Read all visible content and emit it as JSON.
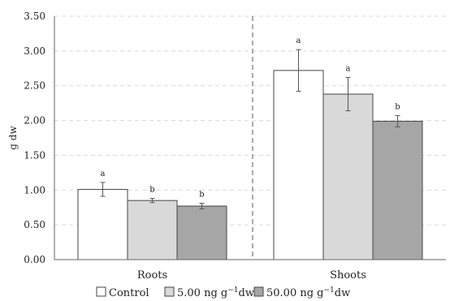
{
  "chart_data": {
    "type": "bar",
    "ylabel": "g dw",
    "ylim": [
      0,
      3.5
    ],
    "yticks": [
      "0.00",
      "0.50",
      "1.00",
      "1.50",
      "2.00",
      "2.50",
      "3.00",
      "3.50"
    ],
    "categories": [
      "Roots",
      "Shoots"
    ],
    "grid": true,
    "legend": "bottom",
    "series": [
      {
        "name": "Control",
        "legend_label": "Control",
        "color": "#ffffff",
        "values": [
          1.01,
          2.72
        ],
        "errors": [
          0.1,
          0.3
        ],
        "letters": [
          "a",
          "a"
        ]
      },
      {
        "name": "5.00 ng g-1dw",
        "legend_label": "5.00 ng g",
        "legend_sup": "−1",
        "legend_tail": "dw",
        "color": "#d9d9d9",
        "values": [
          0.85,
          2.38
        ],
        "errors": [
          0.03,
          0.24
        ],
        "letters": [
          "b",
          "a"
        ]
      },
      {
        "name": "50.00 ng g-1dw",
        "legend_label": "50.00  ng g",
        "legend_sup": "−1",
        "legend_tail": "dw",
        "color": "#a6a6a6",
        "values": [
          0.77,
          1.99
        ],
        "errors": [
          0.04,
          0.08
        ],
        "letters": [
          "b",
          "b"
        ]
      }
    ]
  }
}
